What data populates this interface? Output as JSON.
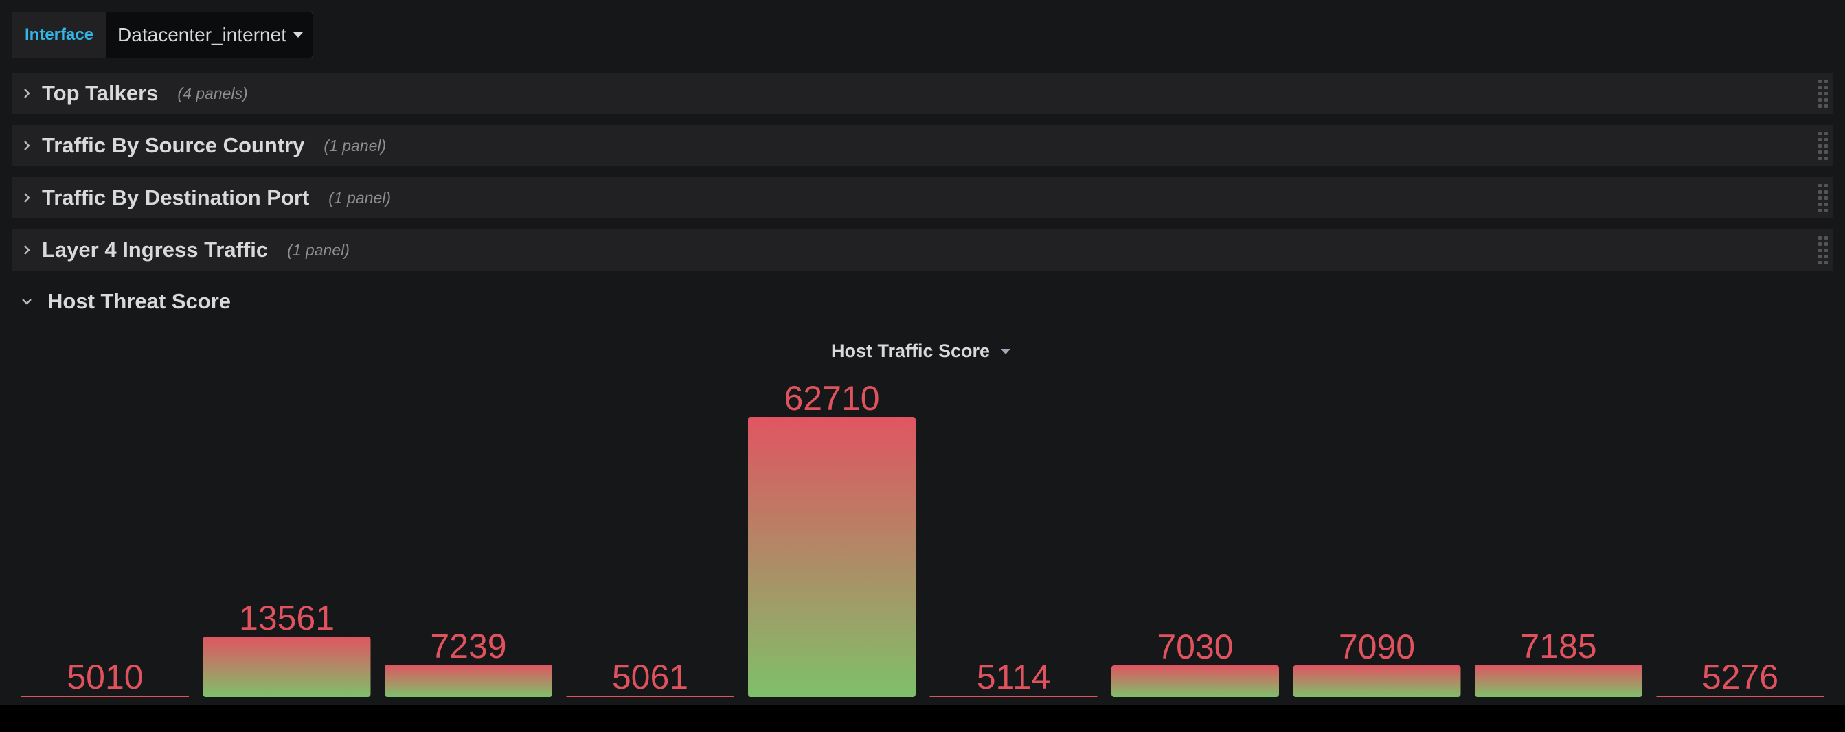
{
  "variable": {
    "label": "Interface",
    "value": "Datacenter_internet"
  },
  "rows": [
    {
      "title": "Top Talkers",
      "count": "(4 panels)"
    },
    {
      "title": "Traffic By Source Country",
      "count": "(1 panel)"
    },
    {
      "title": "Traffic By Destination Port",
      "count": "(1 panel)"
    },
    {
      "title": "Layer 4 Ingress Traffic",
      "count": "(1 panel)"
    }
  ],
  "open_row": {
    "title": "Host Threat Score"
  },
  "panel": {
    "title": "Host Traffic Score"
  },
  "colors": {
    "value_text": "#e0535e",
    "bar_top": "#e05562",
    "bar_bottom": "#7fc06a",
    "baseline": "#e0535e"
  },
  "chart_data": {
    "type": "bar",
    "title": "Host Traffic Score",
    "values": [
      5010,
      13561,
      7239,
      5061,
      62710,
      5114,
      7030,
      7090,
      7185,
      5276
    ],
    "ylim": [
      0,
      62710
    ],
    "grid": false
  }
}
